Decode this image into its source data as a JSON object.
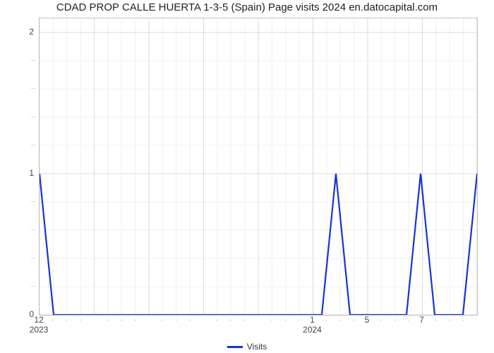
{
  "chart": {
    "type": "line",
    "title": "CDAD PROP CALLE HUERTA 1-3-5 (Spain) Page visits 2024 en.datocapital.com",
    "title_fontsize": 15,
    "title_color": "#222222",
    "background_color": "#ffffff",
    "plot_border_color": "#c0c0c0",
    "grid_major_color": "#d9d9d9",
    "grid_minor_color": "#efefef",
    "axis_label_color": "#444444",
    "axis_font_size": 12,
    "ylim": [
      0,
      2.1
    ],
    "y_major_ticks": [
      0,
      1,
      2
    ],
    "y_minor_count_between": 4,
    "n_points": 32,
    "x_major_divisions": 8,
    "x_major_labels": [
      "12",
      "",
      "",
      "",
      "",
      "1",
      "5",
      "7"
    ],
    "x_secondary_labels": [
      "2023",
      "",
      "",
      "",
      "",
      "2024",
      "",
      ""
    ],
    "x_minor_per_major": 4,
    "series": {
      "name": "Visits",
      "color": "#1634d4",
      "line_width": 2.2,
      "values": [
        1,
        0,
        0,
        0,
        0,
        0,
        0,
        0,
        0,
        0,
        0,
        0,
        0,
        0,
        0,
        0,
        0,
        0,
        0,
        0,
        0,
        1,
        0,
        0,
        0,
        0,
        0,
        1,
        0,
        0,
        0,
        1
      ]
    },
    "legend": {
      "label": "Visits",
      "swatch_color": "#1634d4",
      "position": "bottom-center"
    }
  }
}
